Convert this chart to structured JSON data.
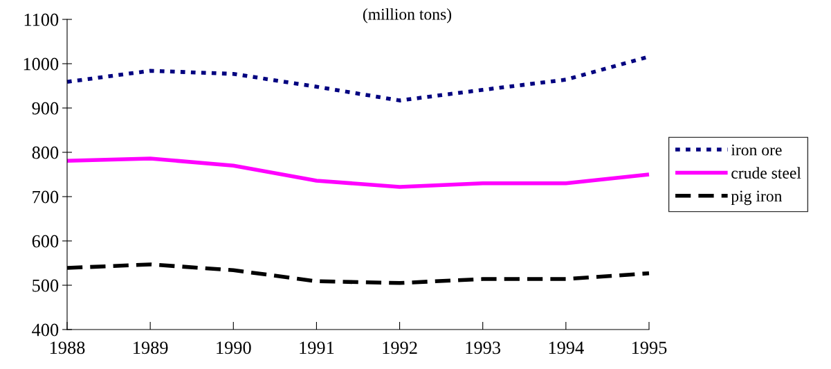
{
  "chart_data": {
    "type": "line",
    "subtitle": "(million tons)",
    "x": [
      1988,
      1989,
      1990,
      1991,
      1992,
      1993,
      1994,
      1995
    ],
    "series": [
      {
        "name": "iron ore",
        "color": "#000080",
        "line_style": "dotted",
        "values": [
          959,
          984,
          977,
          948,
          917,
          941,
          964,
          1016
        ]
      },
      {
        "name": "crude steel",
        "color": "#ff00ff",
        "line_style": "solid",
        "values": [
          781,
          786,
          770,
          736,
          722,
          730,
          730,
          750
        ]
      },
      {
        "name": "pig iron",
        "color": "#000000",
        "line_style": "dashed",
        "values": [
          539,
          547,
          534,
          509,
          505,
          514,
          514,
          527
        ]
      }
    ],
    "xlim": [
      1988,
      1995
    ],
    "xticks": [
      1988,
      1989,
      1990,
      1991,
      1992,
      1993,
      1994,
      1995
    ],
    "ylim": [
      400,
      1100
    ],
    "yticks": [
      400,
      500,
      600,
      700,
      800,
      900,
      1000,
      1100
    ],
    "grid": false,
    "legend": "right"
  }
}
